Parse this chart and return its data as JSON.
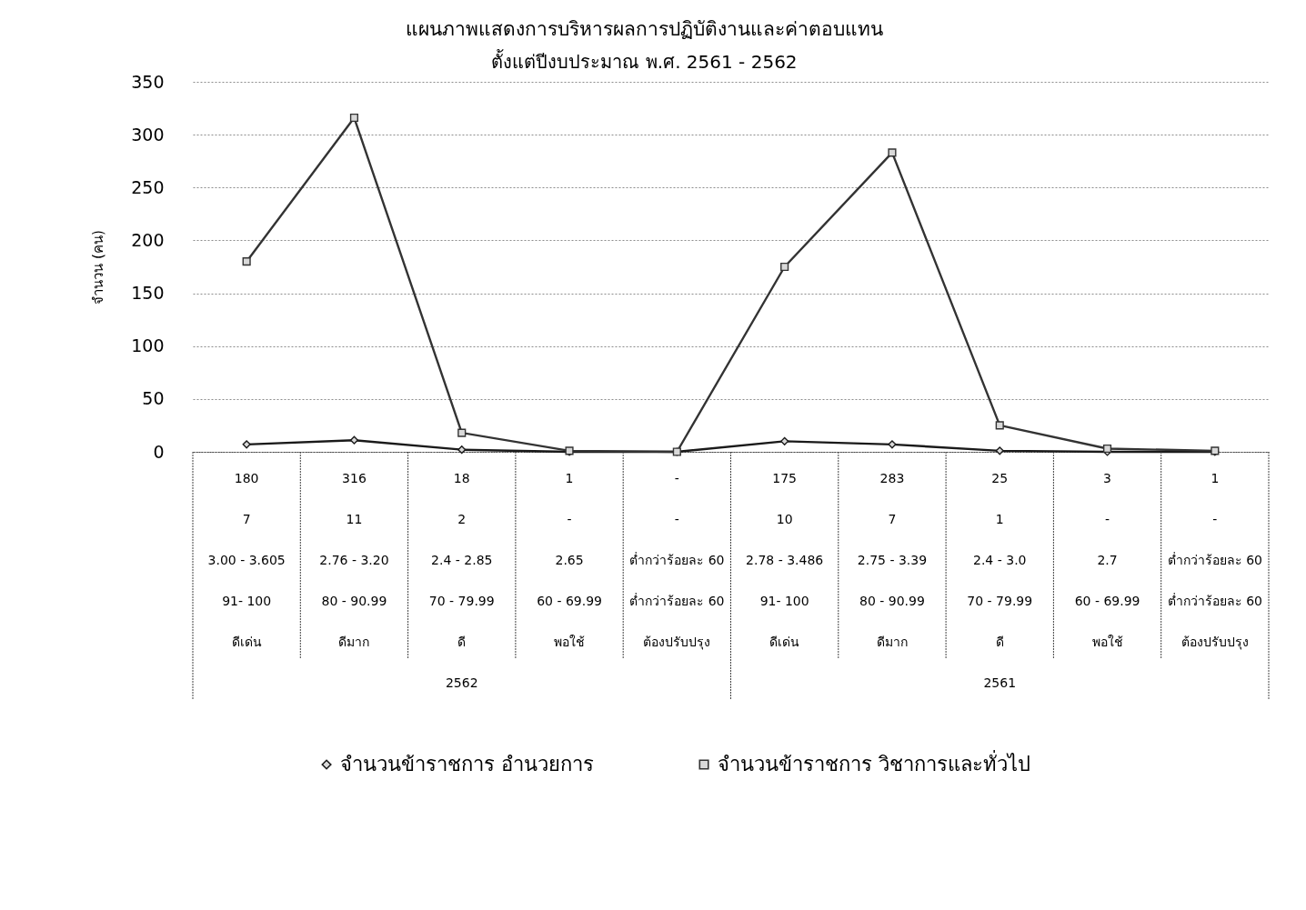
{
  "chart_data": {
    "type": "line",
    "title": "แผนภาพแสดงการบริหารผลการปฏิบัติงานและค่าตอบแทน",
    "subtitle": "ตั้งแต่ปีงบประมาณ พ.ศ. 2561 - 2562",
    "ylabel": "จำนวน (คน)",
    "categories": [
      "3.00 - 3.605\n91- 100\nดีเด่น",
      "2.76 - 3.20\n80 - 90.99\nดีมาก",
      "2.4 - 2.85\n70 - 79.99\nดี",
      "2.65\n60 - 69.99\nพอใช้",
      "ต่ำกว่าร้อยละ 60\nต่ำกว่าร้อยละ 60\nต้องปรับปรุง",
      "2.78 - 3.486\n91- 100\nดีเด่น",
      "2.75 - 3.39\n80 - 90.99\nดีมาก",
      "2.4 - 3.0\n70 - 79.99\nดี",
      "2.7\n60 - 69.99\nพอใช้",
      "ต่ำกว่าร้อยละ 60\nต่ำกว่าร้อยละ 60\nต้องปรับปรุง"
    ],
    "series": [
      {
        "name": "จำนวนข้าราชการ อำนวยการ",
        "color": "#1a1a1a",
        "marker": "diamond",
        "values": [
          7,
          11,
          2,
          0,
          0,
          10,
          7,
          1,
          0,
          0
        ],
        "value_labels": [
          "7",
          "11",
          "2",
          "-",
          "-",
          "10",
          "7",
          "1",
          "-",
          "-"
        ]
      },
      {
        "name": "จำนวนข้าราชการ วิชาการและทั่วไป",
        "color": "#333333",
        "marker": "square",
        "values": [
          180,
          316,
          18,
          1,
          0,
          175,
          283,
          25,
          3,
          1
        ],
        "value_labels": [
          "180",
          "316",
          "18",
          "1",
          "-",
          "175",
          "283",
          "25",
          "3",
          "1"
        ]
      }
    ],
    "annotations": [
      "2562",
      "2561"
    ],
    "ylim": [
      0,
      350
    ],
    "yticks": [
      0,
      50,
      100,
      150,
      200,
      250,
      300,
      350
    ],
    "grid": "y",
    "legend": "bottom",
    "line_style": "solid"
  }
}
